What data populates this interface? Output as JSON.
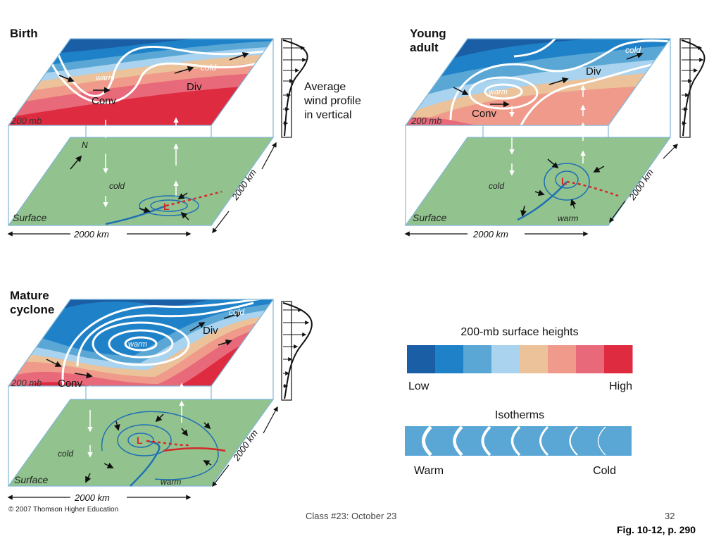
{
  "panels": {
    "birth": {
      "title": "Birth"
    },
    "young": {
      "title_line1": "Young",
      "title_line2": "adult"
    },
    "mature": {
      "title_line1": "Mature",
      "title_line2": "cyclone"
    }
  },
  "labels": {
    "warm": "warm",
    "cold": "cold",
    "conv": "Conv",
    "div": "Div",
    "mb200": "200 mb",
    "surface": "Surface",
    "km": "2000 km",
    "north": "N",
    "low_symbol": "L"
  },
  "wind_note": {
    "line1": "Average",
    "line2": "wind profile",
    "line3": "in vertical"
  },
  "legend_heights": {
    "title": "200-mb surface heights",
    "low": "Low",
    "high": "High",
    "colors": [
      "#1a5fa6",
      "#1f82c8",
      "#5aa7d6",
      "#a9d3ee",
      "#ebc29a",
      "#ef9a8a",
      "#e8697a",
      "#de2b40"
    ]
  },
  "legend_isotherms": {
    "title": "Isotherms",
    "warm": "Warm",
    "cold": "Cold",
    "color": "#5aa7d6"
  },
  "footer": {
    "center": "Class #23:  October 23",
    "page": "32",
    "figref": "Fig. 10-12, p. 290",
    "copyright": "© 2007 Thomson Higher Education"
  }
}
